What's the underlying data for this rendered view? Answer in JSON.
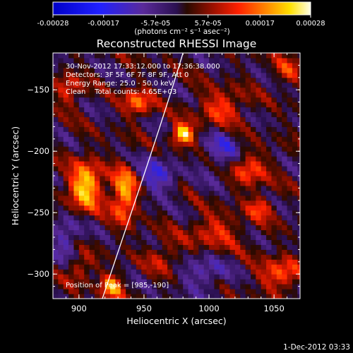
{
  "chart_data": {
    "type": "heatmap",
    "title": "Reconstructed RHESSI Image",
    "xlabel": "Heliocentric X (arcsec)",
    "ylabel": "Heliocentric Y (arcsec)",
    "xlim": [
      880,
      1070
    ],
    "ylim": [
      -320,
      -120
    ],
    "x_ticks": [
      900,
      950,
      1000,
      1050
    ],
    "y_ticks": [
      -300,
      -250,
      -200,
      -150
    ],
    "colorbar": {
      "min": -0.00028,
      "max": 0.00028,
      "tick_values": [
        -0.00028,
        -0.00017,
        -5.7e-05,
        5.7e-05,
        0.00017,
        0.00028
      ],
      "tick_labels": [
        "-0.00028",
        "-0.00017",
        "-5.7e-05",
        "5.7e-05",
        "0.00017",
        "0.00028"
      ],
      "units": "(photons cm⁻² s⁻¹ asec⁻²)"
    },
    "annotations": [
      "30-Nov-2012 17:33:12.000 to 17:36:38.000",
      "Detectors: 3F 5F 6F 7F 8F 9F, Att 0",
      "Energy Range: 25.0 - 50.0 keV",
      "Clean    Total counts: 4.65E+03"
    ],
    "peak_label": "Position of Peak = [985,-190]",
    "limb_curve": [
      [
        918,
        -320
      ],
      [
        940,
        -250
      ],
      [
        960,
        -190
      ],
      [
        980,
        -120
      ]
    ],
    "sources": [
      {
        "x": 980,
        "y": -186,
        "amp": 0.00027,
        "sx": 6,
        "sy": 6
      },
      {
        "x": 905,
        "y": -228,
        "amp": 0.00024,
        "sx": 9,
        "sy": 14
      },
      {
        "x": 935,
        "y": -235,
        "amp": 0.00022,
        "sx": 7,
        "sy": 15
      },
      {
        "x": 892,
        "y": -150,
        "amp": 0.00012,
        "sx": 7,
        "sy": 9
      },
      {
        "x": 945,
        "y": -160,
        "amp": 0.00016,
        "sx": 8,
        "sy": 8
      },
      {
        "x": 1010,
        "y": -165,
        "amp": 0.00014,
        "sx": 12,
        "sy": 10
      },
      {
        "x": 1030,
        "y": -215,
        "amp": 0.00014,
        "sx": 10,
        "sy": 10
      },
      {
        "x": 1055,
        "y": -300,
        "amp": 0.00015,
        "sx": 12,
        "sy": 9
      },
      {
        "x": 1005,
        "y": -265,
        "amp": 0.00011,
        "sx": 15,
        "sy": 10
      },
      {
        "x": 925,
        "y": -310,
        "amp": 0.0002,
        "sx": 6,
        "sy": 7
      },
      {
        "x": 900,
        "y": -295,
        "amp": 0.00011,
        "sx": 7,
        "sy": 8
      },
      {
        "x": 1060,
        "y": -135,
        "amp": 0.0001,
        "sx": 8,
        "sy": 8
      },
      {
        "x": 1040,
        "y": -245,
        "amp": 0.00012,
        "sx": 7,
        "sy": 7
      },
      {
        "x": 965,
        "y": -285,
        "amp": 9e-05,
        "sx": 9,
        "sy": 9
      },
      {
        "x": 960,
        "y": -220,
        "amp": -0.00012,
        "sx": 10,
        "sy": 12
      },
      {
        "x": 1010,
        "y": -200,
        "amp": -0.0001,
        "sx": 10,
        "sy": 14
      },
      {
        "x": 995,
        "y": -300,
        "amp": -0.0001,
        "sx": 12,
        "sy": 10
      },
      {
        "x": 890,
        "y": -270,
        "amp": -0.00011,
        "sx": 8,
        "sy": 12
      }
    ]
  },
  "footer": {
    "timestamp": "1-Dec-2012 03:33"
  }
}
